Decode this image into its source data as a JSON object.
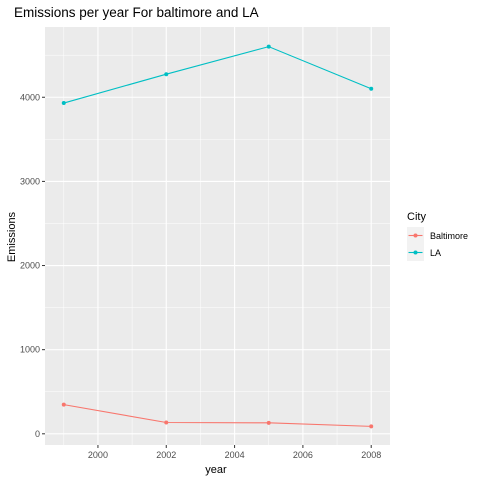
{
  "chart_data": {
    "type": "line",
    "title": "Emissions per year For baltimore and LA",
    "xlabel": "year",
    "ylabel": "Emissions",
    "x": [
      1999,
      2002,
      2005,
      2008
    ],
    "series": [
      {
        "name": "Baltimore",
        "color": "#F8766D",
        "values": [
          346.82,
          134.31,
          130.43,
          88.28
        ]
      },
      {
        "name": "LA",
        "color": "#00BFC4",
        "values": [
          3931.12,
          4274.03,
          4601.41,
          4101.32
        ]
      }
    ],
    "xlim": [
      1998.45,
      2008.55
    ],
    "ylim": [
      -133,
      4835
    ],
    "x_ticks": [
      2000,
      2002,
      2004,
      2006,
      2008
    ],
    "x_tick_labels": [
      "2000",
      "2002",
      "2004",
      "2006",
      "2008"
    ],
    "y_ticks": [
      0,
      1000,
      2000,
      3000,
      4000
    ],
    "y_tick_labels": [
      "0",
      "1000",
      "2000",
      "3000",
      "4000"
    ],
    "grid": true,
    "panel_color": "#EBEBEB",
    "legend": {
      "title": "City",
      "position": "right"
    }
  }
}
